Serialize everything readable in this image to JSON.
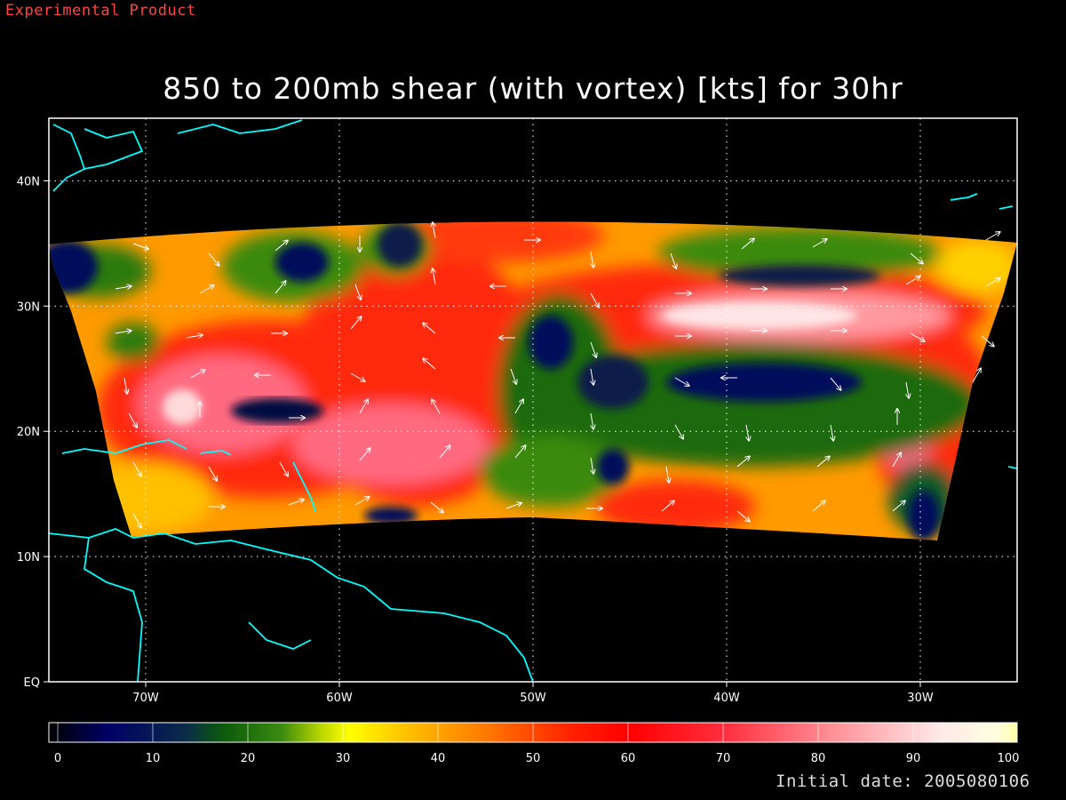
{
  "banner": "Experimental Product",
  "title": "850 to 200mb shear (with vortex) [kts] for 30hr",
  "footer": {
    "label": "Initial date:",
    "value": "2005080106"
  },
  "map": {
    "lon_range": [
      -75,
      -25
    ],
    "lat_range": [
      0,
      45
    ],
    "lon_ticks": [
      {
        "v": -70,
        "label": "70W"
      },
      {
        "v": -60,
        "label": "60W"
      },
      {
        "v": -50,
        "label": "50W"
      },
      {
        "v": -40,
        "label": "40W"
      },
      {
        "v": -30,
        "label": "30W"
      }
    ],
    "lat_ticks": [
      {
        "v": 0,
        "label": "EQ"
      },
      {
        "v": 10,
        "label": "10N"
      },
      {
        "v": 20,
        "label": "20N"
      },
      {
        "v": 30,
        "label": "30N"
      },
      {
        "v": 40,
        "label": "40N"
      }
    ],
    "grid": true,
    "coast_color": "#00ffff"
  },
  "colorbar": {
    "min": 0,
    "max": 100,
    "ticks": [
      "0",
      "10",
      "20",
      "30",
      "40",
      "50",
      "60",
      "70",
      "80",
      "90",
      "100"
    ],
    "stops": [
      {
        "v": 0,
        "c": "#000000"
      },
      {
        "v": 6,
        "c": "#000066"
      },
      {
        "v": 14,
        "c": "#0a2a4a"
      },
      {
        "v": 18,
        "c": "#0b5a0b"
      },
      {
        "v": 24,
        "c": "#3a8a10"
      },
      {
        "v": 28,
        "c": "#b8d400"
      },
      {
        "v": 31,
        "c": "#ffff00"
      },
      {
        "v": 37,
        "c": "#ffc000"
      },
      {
        "v": 45,
        "c": "#ff7a00"
      },
      {
        "v": 54,
        "c": "#ff2000"
      },
      {
        "v": 60,
        "c": "#ff0000"
      },
      {
        "v": 70,
        "c": "#ff3040"
      },
      {
        "v": 80,
        "c": "#ff8890"
      },
      {
        "v": 92,
        "c": "#ffe8e8"
      },
      {
        "v": 98,
        "c": "#ffffe0"
      },
      {
        "v": 100,
        "c": "#ffffa0"
      }
    ]
  }
}
